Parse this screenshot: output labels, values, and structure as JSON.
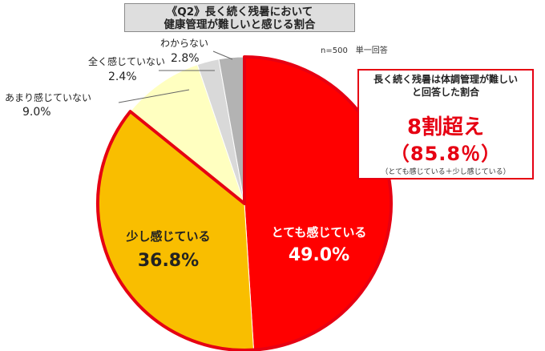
{
  "title": {
    "line1": "《Q2》長く続く残暑において",
    "line2": "健康管理が難しいと感じる割合"
  },
  "note": "n=500　単一回答",
  "callout": {
    "line1": "長く続く残暑は体調管理が難しい",
    "line2": "と回答した割合",
    "headline": "8割超え",
    "value": "（85.8％）",
    "note": "（とても感じている＋少し感じている）"
  },
  "chart_data": {
    "type": "pie",
    "start_angle_deg": 0,
    "direction": "clockwise",
    "slices": [
      {
        "label": "とても感じている",
        "value": 49.0,
        "display": "49.0%",
        "color": "#ff0000"
      },
      {
        "label": "少し感じている",
        "value": 36.8,
        "display": "36.8%",
        "color": "#f9be00"
      },
      {
        "label": "あまり感じていない",
        "value": 9.0,
        "display": "9.0%",
        "color": "#ffffc0"
      },
      {
        "label": "全く感じていない",
        "value": 2.4,
        "display": "2.4%",
        "color": "#d9d9d9"
      },
      {
        "label": "わからない",
        "value": 2.8,
        "display": "2.8%",
        "color": "#b3b3b3"
      }
    ],
    "highlight_outline_color": "#e60012"
  }
}
